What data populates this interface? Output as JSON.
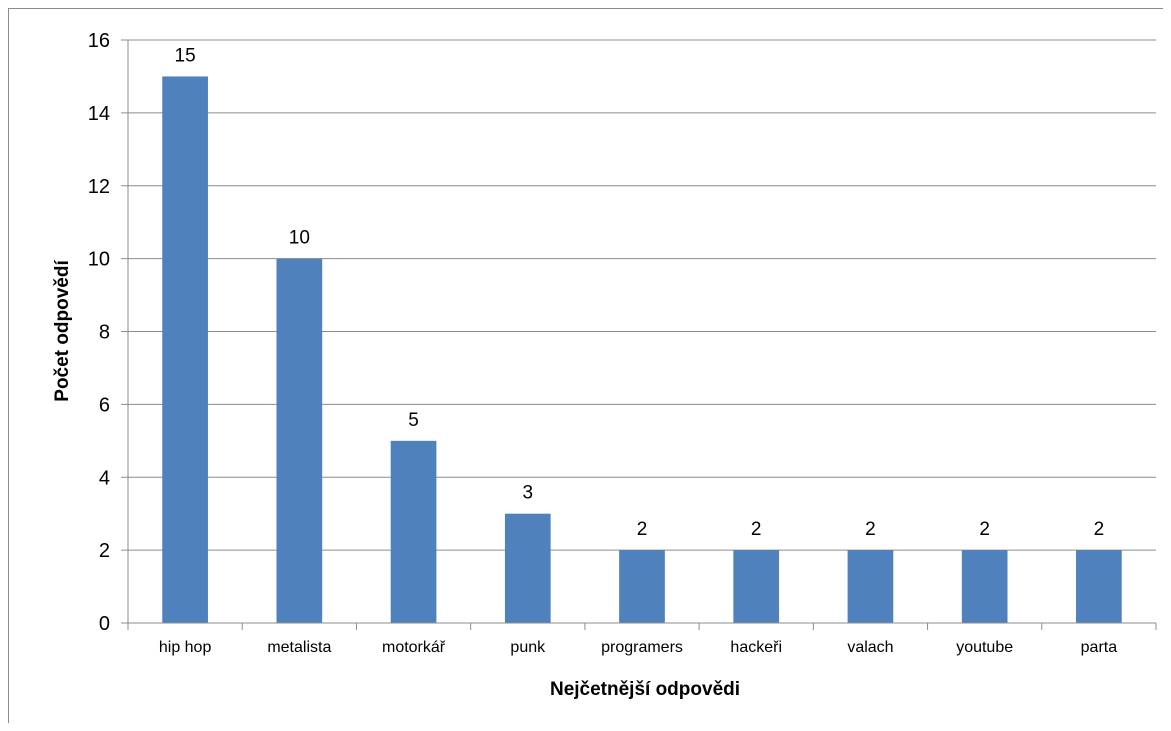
{
  "chart_data": {
    "type": "bar",
    "categories": [
      "hip hop",
      "metalista",
      "motorkář",
      "punk",
      "programers",
      "hackeři",
      "valach",
      "youtube",
      "parta"
    ],
    "values": [
      15,
      10,
      5,
      3,
      2,
      2,
      2,
      2,
      2
    ],
    "data_labels": [
      "15",
      "10",
      "5",
      "3",
      "2",
      "2",
      "2",
      "2",
      "2"
    ],
    "xlabel": "Nejčetnější odpovědi",
    "ylabel": "Počet odpovědí",
    "ylim": [
      0,
      16
    ],
    "yticks": [
      0,
      2,
      4,
      6,
      8,
      10,
      12,
      14,
      16
    ],
    "ytick_labels": [
      "0",
      "2",
      "4",
      "6",
      "8",
      "10",
      "12",
      "14",
      "16"
    ],
    "grid": true,
    "legend": "none",
    "bar_color": "#4f81bd",
    "grid_color": "#8c8c8c"
  }
}
